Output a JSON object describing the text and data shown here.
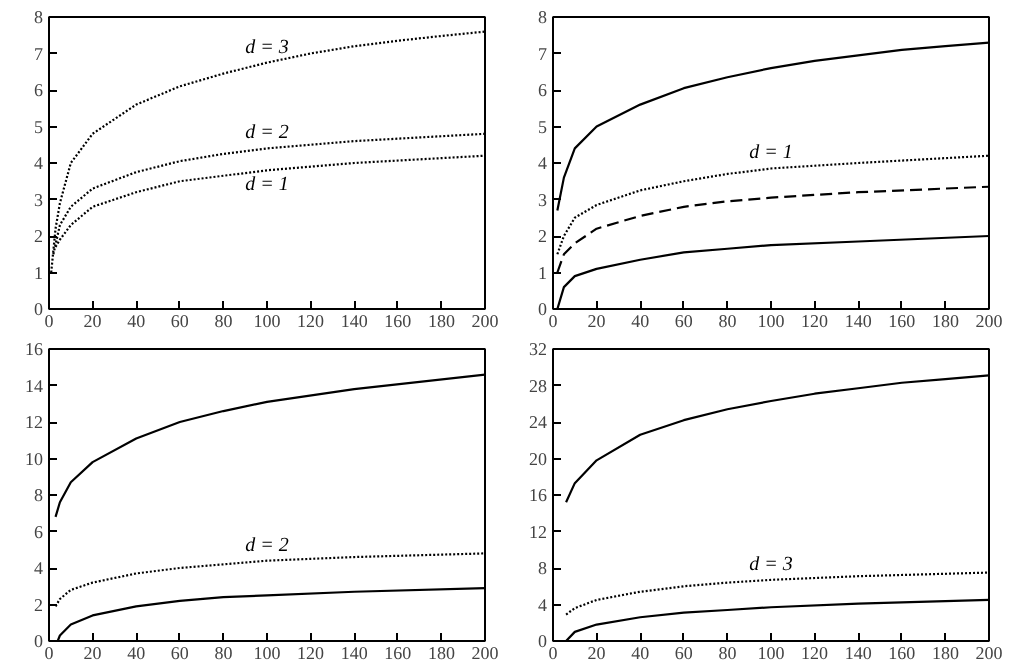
{
  "chart_data": [
    {
      "type": "line",
      "xlim": [
        0,
        200
      ],
      "ylim": [
        0,
        8
      ],
      "xticks": [
        0,
        20,
        40,
        60,
        80,
        100,
        120,
        140,
        160,
        180,
        200
      ],
      "yticks": [
        0,
        1,
        2,
        3,
        4,
        5,
        6,
        7,
        8
      ],
      "series": [
        {
          "name": "d = 3",
          "color": "#000000",
          "line_style": "dotted",
          "x": [
            1,
            3,
            5,
            10,
            20,
            40,
            60,
            80,
            100,
            120,
            140,
            160,
            180,
            200
          ],
          "values": [
            1.0,
            2.2,
            2.9,
            4.0,
            4.8,
            5.6,
            6.1,
            6.45,
            6.75,
            7.0,
            7.2,
            7.35,
            7.48,
            7.6
          ]
        },
        {
          "name": "d = 2",
          "color": "#000000",
          "line_style": "dotted",
          "x": [
            2,
            5,
            10,
            20,
            40,
            60,
            80,
            100,
            140,
            200
          ],
          "values": [
            1.5,
            2.3,
            2.8,
            3.3,
            3.75,
            4.05,
            4.25,
            4.4,
            4.6,
            4.8
          ]
        },
        {
          "name": "d = 1",
          "color": "#000000",
          "line_style": "dotted",
          "x": [
            3,
            5,
            10,
            20,
            40,
            60,
            80,
            100,
            140,
            200
          ],
          "values": [
            1.7,
            1.9,
            2.3,
            2.8,
            3.2,
            3.5,
            3.65,
            3.8,
            4.0,
            4.2
          ]
        }
      ]
    },
    {
      "type": "line",
      "xlim": [
        0,
        200
      ],
      "ylim": [
        0,
        8
      ],
      "xticks": [
        0,
        20,
        40,
        60,
        80,
        100,
        120,
        140,
        160,
        180,
        200
      ],
      "yticks": [
        0,
        1,
        2,
        3,
        4,
        5,
        6,
        7,
        8
      ],
      "series": [
        {
          "color": "#000000",
          "line_style": "solid",
          "x": [
            2,
            5,
            10,
            20,
            40,
            60,
            80,
            100,
            120,
            140,
            160,
            180,
            200
          ],
          "values": [
            2.7,
            3.6,
            4.4,
            5.0,
            5.6,
            6.05,
            6.35,
            6.6,
            6.8,
            6.95,
            7.1,
            7.2,
            7.3
          ]
        },
        {
          "name": "d = 1",
          "color": "#000000",
          "line_style": "dotted",
          "x": [
            2,
            5,
            10,
            20,
            40,
            60,
            80,
            100,
            140,
            200
          ],
          "values": [
            1.5,
            2.0,
            2.5,
            2.85,
            3.25,
            3.5,
            3.7,
            3.85,
            4.0,
            4.2
          ]
        },
        {
          "color": "#000000",
          "line_style": "dashed",
          "x": [
            2,
            5,
            10,
            20,
            40,
            60,
            80,
            100,
            140,
            200
          ],
          "values": [
            1.0,
            1.5,
            1.8,
            2.2,
            2.55,
            2.8,
            2.95,
            3.05,
            3.2,
            3.35
          ]
        },
        {
          "color": "#000000",
          "line_style": "solid",
          "x": [
            2,
            5,
            10,
            20,
            40,
            60,
            80,
            100,
            140,
            200
          ],
          "values": [
            0,
            0.6,
            0.9,
            1.1,
            1.35,
            1.55,
            1.65,
            1.75,
            1.85,
            2.0
          ]
        }
      ]
    },
    {
      "type": "line",
      "xlim": [
        0,
        200
      ],
      "ylim": [
        0,
        16
      ],
      "xticks": [
        0,
        20,
        40,
        60,
        80,
        100,
        120,
        140,
        160,
        180,
        200
      ],
      "yticks": [
        0,
        2,
        4,
        6,
        8,
        10,
        12,
        14,
        16
      ],
      "series": [
        {
          "color": "#000000",
          "line_style": "solid",
          "x": [
            3,
            5,
            10,
            20,
            40,
            60,
            80,
            100,
            140,
            200
          ],
          "values": [
            6.8,
            7.6,
            8.7,
            9.8,
            11.1,
            12.0,
            12.6,
            13.1,
            13.8,
            14.6
          ]
        },
        {
          "name": "d = 2",
          "color": "#000000",
          "line_style": "dotted",
          "x": [
            3,
            5,
            10,
            20,
            40,
            60,
            80,
            100,
            140,
            200
          ],
          "values": [
            1.9,
            2.3,
            2.8,
            3.2,
            3.7,
            4.0,
            4.2,
            4.4,
            4.6,
            4.8
          ]
        },
        {
          "color": "#000000",
          "line_style": "solid",
          "x": [
            4,
            5,
            10,
            20,
            40,
            60,
            80,
            100,
            140,
            200
          ],
          "values": [
            0,
            0.3,
            0.9,
            1.4,
            1.9,
            2.2,
            2.4,
            2.5,
            2.7,
            2.9
          ]
        }
      ]
    },
    {
      "type": "line",
      "xlim": [
        0,
        200
      ],
      "ylim": [
        0,
        32
      ],
      "xticks": [
        0,
        20,
        40,
        60,
        80,
        100,
        120,
        140,
        160,
        180,
        200
      ],
      "yticks": [
        0,
        4,
        8,
        12,
        16,
        20,
        24,
        28,
        32
      ],
      "series": [
        {
          "color": "#000000",
          "line_style": "solid",
          "x": [
            6,
            10,
            20,
            40,
            60,
            80,
            100,
            120,
            140,
            160,
            180,
            200
          ],
          "values": [
            15.2,
            17.3,
            19.8,
            22.6,
            24.2,
            25.4,
            26.3,
            27.1,
            27.7,
            28.3,
            28.7,
            29.1
          ]
        },
        {
          "name": "d = 3",
          "color": "#000000",
          "line_style": "dotted",
          "x": [
            6,
            10,
            20,
            40,
            60,
            80,
            100,
            140,
            200
          ],
          "values": [
            2.9,
            3.6,
            4.5,
            5.4,
            6.0,
            6.4,
            6.7,
            7.1,
            7.5
          ]
        },
        {
          "color": "#000000",
          "line_style": "solid",
          "x": [
            6,
            10,
            20,
            40,
            60,
            80,
            100,
            140,
            200
          ],
          "values": [
            0,
            1.0,
            1.8,
            2.6,
            3.1,
            3.4,
            3.7,
            4.1,
            4.5
          ]
        }
      ]
    }
  ]
}
